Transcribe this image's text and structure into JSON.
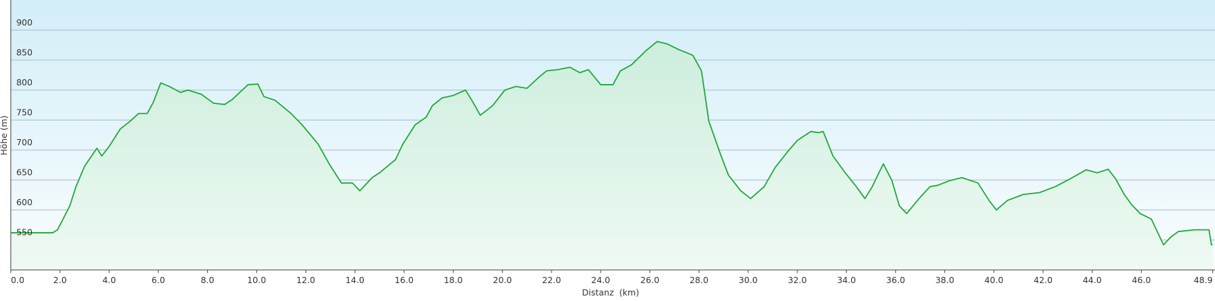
{
  "chart_data": {
    "type": "area",
    "x_label": "Distanz  (km)",
    "y_label": "Höhe (m)",
    "x": [
      0,
      1.7,
      1.9,
      2.4,
      2.65,
      3.0,
      3.5,
      3.7,
      4.0,
      4.45,
      4.85,
      5.2,
      5.55,
      5.8,
      6.1,
      6.45,
      6.9,
      7.2,
      7.75,
      8.25,
      8.7,
      9.0,
      9.65,
      10.05,
      10.3,
      10.75,
      11.4,
      11.85,
      12.5,
      12.95,
      13.45,
      13.9,
      14.2,
      14.7,
      15.0,
      15.65,
      15.95,
      16.45,
      16.9,
      17.15,
      17.55,
      18.0,
      18.5,
      18.8,
      19.1,
      19.6,
      20.1,
      20.55,
      21.0,
      21.5,
      21.8,
      22.25,
      22.75,
      23.15,
      23.5,
      24.0,
      24.5,
      24.8,
      25.25,
      25.85,
      26.3,
      26.7,
      27.15,
      27.75,
      28.1,
      28.4,
      28.9,
      29.2,
      29.7,
      30.1,
      30.65,
      31.1,
      31.6,
      32.0,
      32.55,
      32.85,
      33.05,
      33.45,
      33.95,
      34.4,
      34.75,
      35.05,
      35.2,
      35.5,
      35.85,
      36.15,
      36.45,
      36.95,
      37.4,
      37.7,
      38.2,
      38.7,
      39.35,
      39.8,
      40.1,
      40.55,
      41.2,
      41.85,
      42.5,
      43.1,
      43.75,
      44.2,
      44.65,
      44.95,
      45.3,
      45.6,
      45.95,
      46.4,
      46.9,
      47.2,
      47.5,
      48.15,
      48.75,
      48.85,
      48.9
    ],
    "values": [
      562,
      562,
      567,
      607,
      639,
      673,
      703,
      690,
      706,
      735,
      748,
      761,
      761,
      780,
      812,
      806,
      796,
      800,
      793,
      778,
      776,
      784,
      809,
      810,
      789,
      783,
      761,
      742,
      710,
      677,
      645,
      645,
      632,
      654,
      662,
      684,
      710,
      742,
      755,
      774,
      787,
      791,
      800,
      780,
      758,
      774,
      800,
      806,
      803,
      822,
      832,
      834,
      838,
      829,
      834,
      809,
      809,
      832,
      842,
      866,
      881,
      877,
      868,
      858,
      832,
      748,
      690,
      658,
      632,
      619,
      639,
      671,
      697,
      716,
      731,
      729,
      731,
      690,
      662,
      639,
      619,
      639,
      652,
      677,
      649,
      607,
      594,
      619,
      639,
      641,
      649,
      654,
      645,
      616,
      600,
      616,
      626,
      629,
      639,
      652,
      667,
      662,
      668,
      652,
      626,
      609,
      594,
      585,
      542,
      555,
      564,
      567,
      567,
      542,
      542
    ],
    "color": "#22a83a",
    "xlim": [
      0,
      48.9
    ],
    "ylim": [
      500,
      950
    ],
    "xticks": [
      {
        "value": 0,
        "label": "0.0"
      },
      {
        "value": 2,
        "label": "2.0"
      },
      {
        "value": 4,
        "label": "4.0"
      },
      {
        "value": 6,
        "label": "6.0"
      },
      {
        "value": 8,
        "label": "8.0"
      },
      {
        "value": 10,
        "label": "10.0"
      },
      {
        "value": 12,
        "label": "12.0"
      },
      {
        "value": 14,
        "label": "14.0"
      },
      {
        "value": 16,
        "label": "16.0"
      },
      {
        "value": 18,
        "label": "18.0"
      },
      {
        "value": 20,
        "label": "20.0"
      },
      {
        "value": 22,
        "label": "22.0"
      },
      {
        "value": 24,
        "label": "24.0"
      },
      {
        "value": 26,
        "label": "26.0"
      },
      {
        "value": 28,
        "label": "28.0"
      },
      {
        "value": 30,
        "label": "30.0"
      },
      {
        "value": 32,
        "label": "32.0"
      },
      {
        "value": 34,
        "label": "34.0"
      },
      {
        "value": 36,
        "label": "36.0"
      },
      {
        "value": 38,
        "label": "38.0"
      },
      {
        "value": 40,
        "label": "40.0"
      },
      {
        "value": 42,
        "label": "42.0"
      },
      {
        "value": 44,
        "label": "44.0"
      },
      {
        "value": 46,
        "label": "46.0"
      },
      {
        "value": 48.9,
        "label": "48.9"
      }
    ],
    "yticks": [
      550,
      600,
      650,
      700,
      750,
      800,
      850,
      900
    ],
    "grid": true
  }
}
